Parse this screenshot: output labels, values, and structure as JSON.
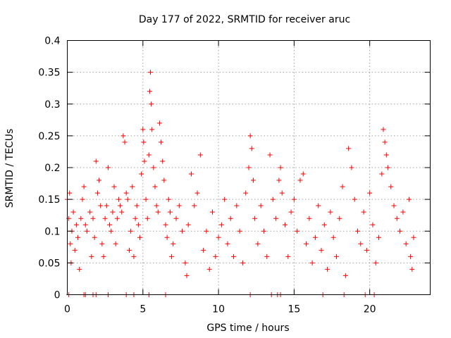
{
  "chart_data": {
    "type": "scatter",
    "title": "Day 177 of 2022, SRMTID for receiver aruc",
    "xlabel": "GPS time / hours",
    "ylabel": "SRMTID / TECUs",
    "xlim": [
      0,
      24
    ],
    "ylim": [
      0,
      0.4
    ],
    "x_ticks": [
      0,
      5,
      10,
      15,
      20
    ],
    "x_tick_labels": [
      "0",
      "5",
      "10",
      "15",
      "20"
    ],
    "y_ticks": [
      0,
      0.05,
      0.1,
      0.15,
      0.2,
      0.25,
      0.3,
      0.35,
      0.4
    ],
    "y_tick_labels": [
      "0",
      "0.05",
      "0.1",
      "0.15",
      "0.2",
      "0.25",
      "0.3",
      "0.35",
      "0.4"
    ],
    "grid": true,
    "marker": "+",
    "color": "#ff0000",
    "series": [
      {
        "name": "SRMTID",
        "points": [
          [
            0.0,
            0.15
          ],
          [
            0.1,
            0.12
          ],
          [
            0.15,
            0.16
          ],
          [
            0.2,
            0.08
          ],
          [
            0.25,
            0.05
          ],
          [
            0.3,
            0.1
          ],
          [
            0.4,
            0.13
          ],
          [
            0.5,
            0.07
          ],
          [
            0.6,
            0.11
          ],
          [
            0.7,
            0.09
          ],
          [
            0.8,
            0.04
          ],
          [
            0.9,
            0.12
          ],
          [
            1.0,
            0.15
          ],
          [
            1.1,
            0.17
          ],
          [
            1.2,
            0.11
          ],
          [
            1.3,
            0.1
          ],
          [
            1.5,
            0.13
          ],
          [
            1.6,
            0.06
          ],
          [
            1.7,
            0.12
          ],
          [
            1.8,
            0.09
          ],
          [
            1.9,
            0.21
          ],
          [
            2.0,
            0.16
          ],
          [
            2.1,
            0.18
          ],
          [
            2.2,
            0.14
          ],
          [
            2.3,
            0.08
          ],
          [
            2.4,
            0.06
          ],
          [
            2.5,
            0.12
          ],
          [
            2.6,
            0.14
          ],
          [
            2.7,
            0.2
          ],
          [
            2.8,
            0.11
          ],
          [
            2.9,
            0.1
          ],
          [
            3.0,
            0.13
          ],
          [
            3.1,
            0.17
          ],
          [
            3.2,
            0.08
          ],
          [
            3.3,
            0.12
          ],
          [
            3.4,
            0.15
          ],
          [
            3.5,
            0.14
          ],
          [
            3.6,
            0.13
          ],
          [
            3.7,
            0.25
          ],
          [
            3.8,
            0.24
          ],
          [
            3.9,
            0.16
          ],
          [
            4.0,
            0.15
          ],
          [
            4.1,
            0.07
          ],
          [
            4.2,
            0.1
          ],
          [
            4.3,
            0.17
          ],
          [
            4.4,
            0.06
          ],
          [
            4.5,
            0.12
          ],
          [
            4.6,
            0.14
          ],
          [
            4.7,
            0.11
          ],
          [
            4.8,
            0.09
          ],
          [
            4.9,
            0.19
          ],
          [
            5.0,
            0.26
          ],
          [
            5.05,
            0.24
          ],
          [
            5.1,
            0.21
          ],
          [
            5.2,
            0.15
          ],
          [
            5.3,
            0.12
          ],
          [
            5.4,
            0.22
          ],
          [
            5.45,
            0.32
          ],
          [
            5.5,
            0.35
          ],
          [
            5.55,
            0.3
          ],
          [
            5.6,
            0.26
          ],
          [
            5.7,
            0.2
          ],
          [
            5.8,
            0.17
          ],
          [
            5.9,
            0.14
          ],
          [
            6.0,
            0.13
          ],
          [
            6.1,
            0.27
          ],
          [
            6.2,
            0.24
          ],
          [
            6.3,
            0.21
          ],
          [
            6.4,
            0.18
          ],
          [
            6.5,
            0.11
          ],
          [
            6.6,
            0.09
          ],
          [
            6.7,
            0.15
          ],
          [
            6.8,
            0.13
          ],
          [
            6.9,
            0.06
          ],
          [
            7.0,
            0.08
          ],
          [
            7.2,
            0.12
          ],
          [
            7.4,
            0.14
          ],
          [
            7.6,
            0.1
          ],
          [
            7.8,
            0.05
          ],
          [
            7.9,
            0.03
          ],
          [
            8.0,
            0.11
          ],
          [
            8.2,
            0.19
          ],
          [
            8.4,
            0.14
          ],
          [
            8.6,
            0.16
          ],
          [
            8.8,
            0.22
          ],
          [
            9.0,
            0.07
          ],
          [
            9.2,
            0.1
          ],
          [
            9.4,
            0.04
          ],
          [
            9.6,
            0.13
          ],
          [
            9.8,
            0.06
          ],
          [
            10.0,
            0.09
          ],
          [
            10.2,
            0.11
          ],
          [
            10.4,
            0.15
          ],
          [
            10.6,
            0.08
          ],
          [
            10.8,
            0.12
          ],
          [
            11.0,
            0.06
          ],
          [
            11.2,
            0.14
          ],
          [
            11.4,
            0.1
          ],
          [
            11.6,
            0.05
          ],
          [
            11.8,
            0.16
          ],
          [
            12.0,
            0.2
          ],
          [
            12.1,
            0.25
          ],
          [
            12.2,
            0.23
          ],
          [
            12.3,
            0.18
          ],
          [
            12.4,
            0.12
          ],
          [
            12.6,
            0.08
          ],
          [
            12.8,
            0.14
          ],
          [
            13.0,
            0.1
          ],
          [
            13.2,
            0.06
          ],
          [
            13.4,
            0.22
          ],
          [
            13.6,
            0.15
          ],
          [
            13.8,
            0.12
          ],
          [
            14.0,
            0.18
          ],
          [
            14.1,
            0.2
          ],
          [
            14.2,
            0.16
          ],
          [
            14.4,
            0.11
          ],
          [
            14.6,
            0.06
          ],
          [
            14.8,
            0.13
          ],
          [
            15.0,
            0.15
          ],
          [
            15.2,
            0.1
          ],
          [
            15.4,
            0.18
          ],
          [
            15.6,
            0.19
          ],
          [
            15.8,
            0.08
          ],
          [
            16.0,
            0.12
          ],
          [
            16.2,
            0.05
          ],
          [
            16.4,
            0.09
          ],
          [
            16.6,
            0.14
          ],
          [
            16.8,
            0.07
          ],
          [
            17.0,
            0.11
          ],
          [
            17.2,
            0.04
          ],
          [
            17.4,
            0.13
          ],
          [
            17.6,
            0.09
          ],
          [
            17.8,
            0.06
          ],
          [
            18.0,
            0.12
          ],
          [
            18.2,
            0.17
          ],
          [
            18.4,
            0.03
          ],
          [
            18.6,
            0.23
          ],
          [
            18.8,
            0.2
          ],
          [
            19.0,
            0.15
          ],
          [
            19.2,
            0.1
          ],
          [
            19.4,
            0.08
          ],
          [
            19.6,
            0.13
          ],
          [
            19.8,
            0.07
          ],
          [
            20.0,
            0.16
          ],
          [
            20.2,
            0.11
          ],
          [
            20.4,
            0.05
          ],
          [
            20.6,
            0.09
          ],
          [
            20.8,
            0.19
          ],
          [
            20.9,
            0.26
          ],
          [
            21.0,
            0.24
          ],
          [
            21.1,
            0.22
          ],
          [
            21.2,
            0.2
          ],
          [
            21.4,
            0.17
          ],
          [
            21.6,
            0.14
          ],
          [
            21.8,
            0.12
          ],
          [
            22.0,
            0.1
          ],
          [
            22.2,
            0.13
          ],
          [
            22.4,
            0.08
          ],
          [
            22.6,
            0.15
          ],
          [
            22.7,
            0.06
          ],
          [
            22.8,
            0.04
          ],
          [
            22.9,
            0.09
          ]
        ],
        "zero_points": [
          0.1,
          1.1,
          1.2,
          1.7,
          1.9,
          2.7,
          3.9,
          4.4,
          5.4,
          6.5,
          12.1,
          13.5,
          13.9,
          14.1,
          16.9,
          18.3,
          19.7,
          20.3
        ]
      }
    ]
  }
}
